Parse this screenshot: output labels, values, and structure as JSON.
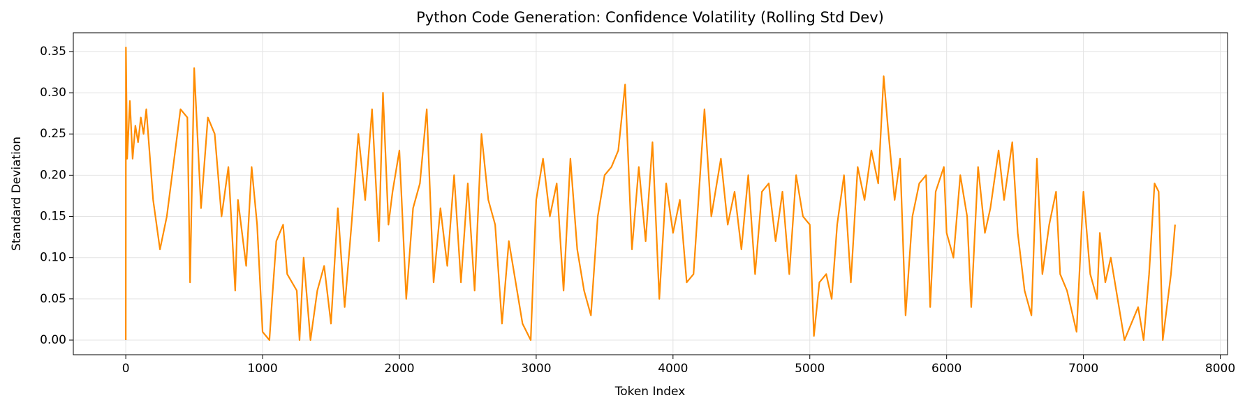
{
  "chart_data": {
    "type": "line",
    "title": "Python Code Generation: Confidence Volatility (Rolling Std Dev)",
    "x_label": "Token Index",
    "y_label": "Standard Deviation",
    "color": "#ff8c00",
    "grid": true,
    "xlim": [
      -383.5,
      8053.5
    ],
    "ylim": [
      -0.01775,
      0.37275
    ],
    "xticks": [
      0,
      1000,
      2000,
      3000,
      4000,
      5000,
      6000,
      7000,
      8000
    ],
    "yticks": [
      {
        "value": 0,
        "label": "0.00"
      },
      {
        "value": 0.05,
        "label": "0.05"
      },
      {
        "value": 0.1,
        "label": "0.10"
      },
      {
        "value": 0.15,
        "label": "0.15"
      },
      {
        "value": 0.2,
        "label": "0.20"
      },
      {
        "value": 0.25,
        "label": "0.25"
      },
      {
        "value": 0.3,
        "label": "0.30"
      },
      {
        "value": 0.35,
        "label": "0.35"
      }
    ],
    "x": [
      0,
      1,
      10,
      30,
      50,
      70,
      90,
      110,
      130,
      150,
      200,
      250,
      300,
      400,
      450,
      470,
      500,
      550,
      600,
      650,
      700,
      750,
      800,
      820,
      880,
      920,
      960,
      1000,
      1050,
      1070,
      1100,
      1150,
      1180,
      1250,
      1270,
      1300,
      1350,
      1400,
      1450,
      1500,
      1550,
      1600,
      1650,
      1700,
      1750,
      1800,
      1850,
      1880,
      1920,
      1950,
      2000,
      2050,
      2100,
      2150,
      2200,
      2250,
      2300,
      2350,
      2400,
      2450,
      2500,
      2550,
      2600,
      2650,
      2700,
      2750,
      2800,
      2850,
      2900,
      2960,
      3000,
      3050,
      3100,
      3150,
      3200,
      3250,
      3300,
      3350,
      3400,
      3450,
      3500,
      3550,
      3600,
      3650,
      3700,
      3750,
      3800,
      3850,
      3900,
      3950,
      4000,
      4050,
      4100,
      4150,
      4230,
      4280,
      4350,
      4400,
      4450,
      4500,
      4550,
      4600,
      4650,
      4700,
      4750,
      4800,
      4850,
      4900,
      4950,
      5000,
      5030,
      5070,
      5120,
      5160,
      5200,
      5250,
      5300,
      5350,
      5400,
      5450,
      5500,
      5540,
      5570,
      5620,
      5660,
      5700,
      5750,
      5800,
      5850,
      5880,
      5920,
      5980,
      6000,
      6050,
      6100,
      6150,
      6180,
      6230,
      6280,
      6320,
      6380,
      6420,
      6480,
      6520,
      6570,
      6620,
      6660,
      6700,
      6750,
      6800,
      6830,
      6880,
      6950,
      7000,
      7050,
      7100,
      7120,
      7160,
      7200,
      7250,
      7300,
      7400,
      7440,
      7480,
      7520,
      7550,
      7580,
      7640,
      7660,
      7670
    ],
    "values": [
      0,
      0.355,
      0.22,
      0.29,
      0.22,
      0.26,
      0.24,
      0.27,
      0.25,
      0.28,
      0.17,
      0.11,
      0.15,
      0.28,
      0.27,
      0.07,
      0.33,
      0.16,
      0.27,
      0.25,
      0.15,
      0.21,
      0.06,
      0.17,
      0.09,
      0.21,
      0.14,
      0.01,
      0,
      0.05,
      0.12,
      0.14,
      0.08,
      0.06,
      0,
      0.1,
      0,
      0.06,
      0.09,
      0.02,
      0.16,
      0.04,
      0.14,
      0.25,
      0.17,
      0.28,
      0.12,
      0.3,
      0.14,
      0.18,
      0.23,
      0.05,
      0.16,
      0.19,
      0.28,
      0.07,
      0.16,
      0.09,
      0.2,
      0.07,
      0.19,
      0.06,
      0.25,
      0.17,
      0.14,
      0.02,
      0.12,
      0.07,
      0.02,
      0,
      0.17,
      0.22,
      0.15,
      0.19,
      0.06,
      0.22,
      0.11,
      0.06,
      0.03,
      0.15,
      0.2,
      0.21,
      0.23,
      0.31,
      0.11,
      0.21,
      0.12,
      0.24,
      0.05,
      0.19,
      0.13,
      0.17,
      0.07,
      0.08,
      0.28,
      0.15,
      0.22,
      0.14,
      0.18,
      0.11,
      0.2,
      0.08,
      0.18,
      0.19,
      0.12,
      0.18,
      0.08,
      0.2,
      0.15,
      0.14,
      0.005,
      0.07,
      0.08,
      0.05,
      0.14,
      0.2,
      0.07,
      0.21,
      0.17,
      0.23,
      0.19,
      0.32,
      0.26,
      0.17,
      0.22,
      0.03,
      0.15,
      0.19,
      0.2,
      0.04,
      0.18,
      0.21,
      0.13,
      0.1,
      0.2,
      0.15,
      0.04,
      0.21,
      0.13,
      0.16,
      0.23,
      0.17,
      0.24,
      0.13,
      0.06,
      0.03,
      0.22,
      0.08,
      0.14,
      0.18,
      0.08,
      0.06,
      0.01,
      0.18,
      0.08,
      0.05,
      0.13,
      0.07,
      0.1,
      0.05,
      0,
      0.04,
      0,
      0.08,
      0.19,
      0.18,
      0,
      0.08,
      0.12,
      0.14
    ]
  }
}
